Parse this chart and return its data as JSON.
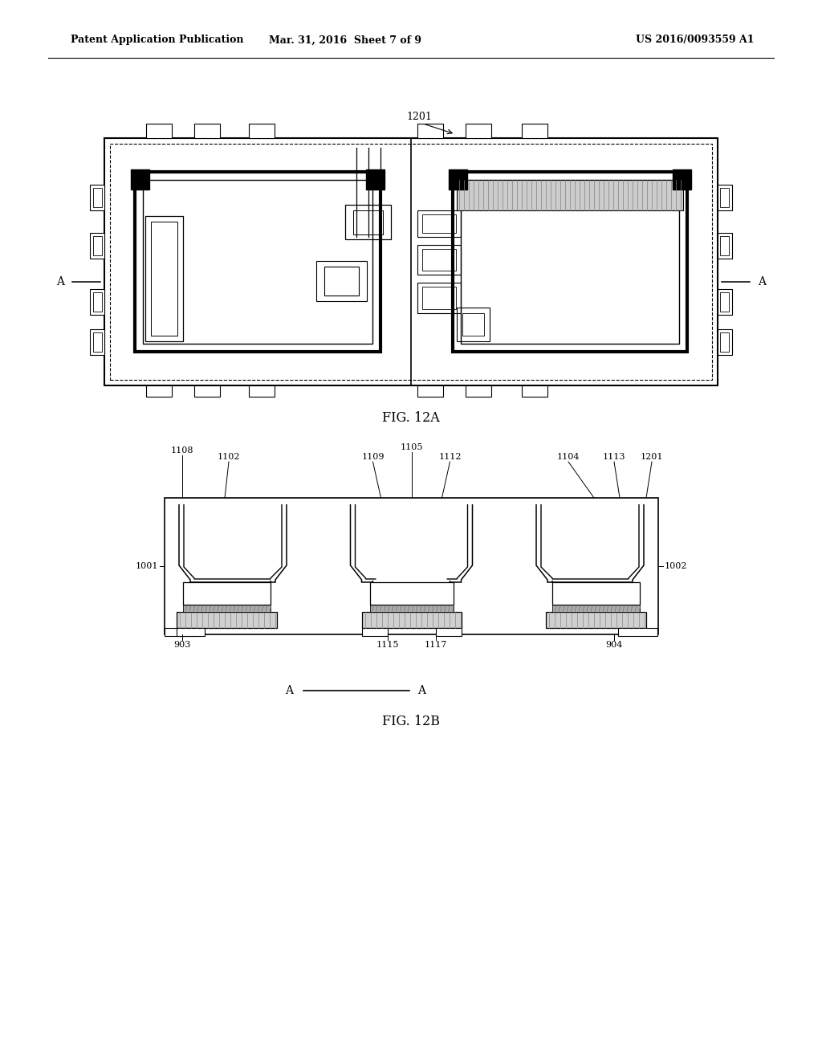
{
  "bg_color": "#ffffff",
  "header_left": "Patent Application Publication",
  "header_mid": "Mar. 31, 2016  Sheet 7 of 9",
  "header_right": "US 2016/0093559 A1",
  "fig12a_label": "FIG. 12A",
  "fig12b_label": "FIG. 12B"
}
